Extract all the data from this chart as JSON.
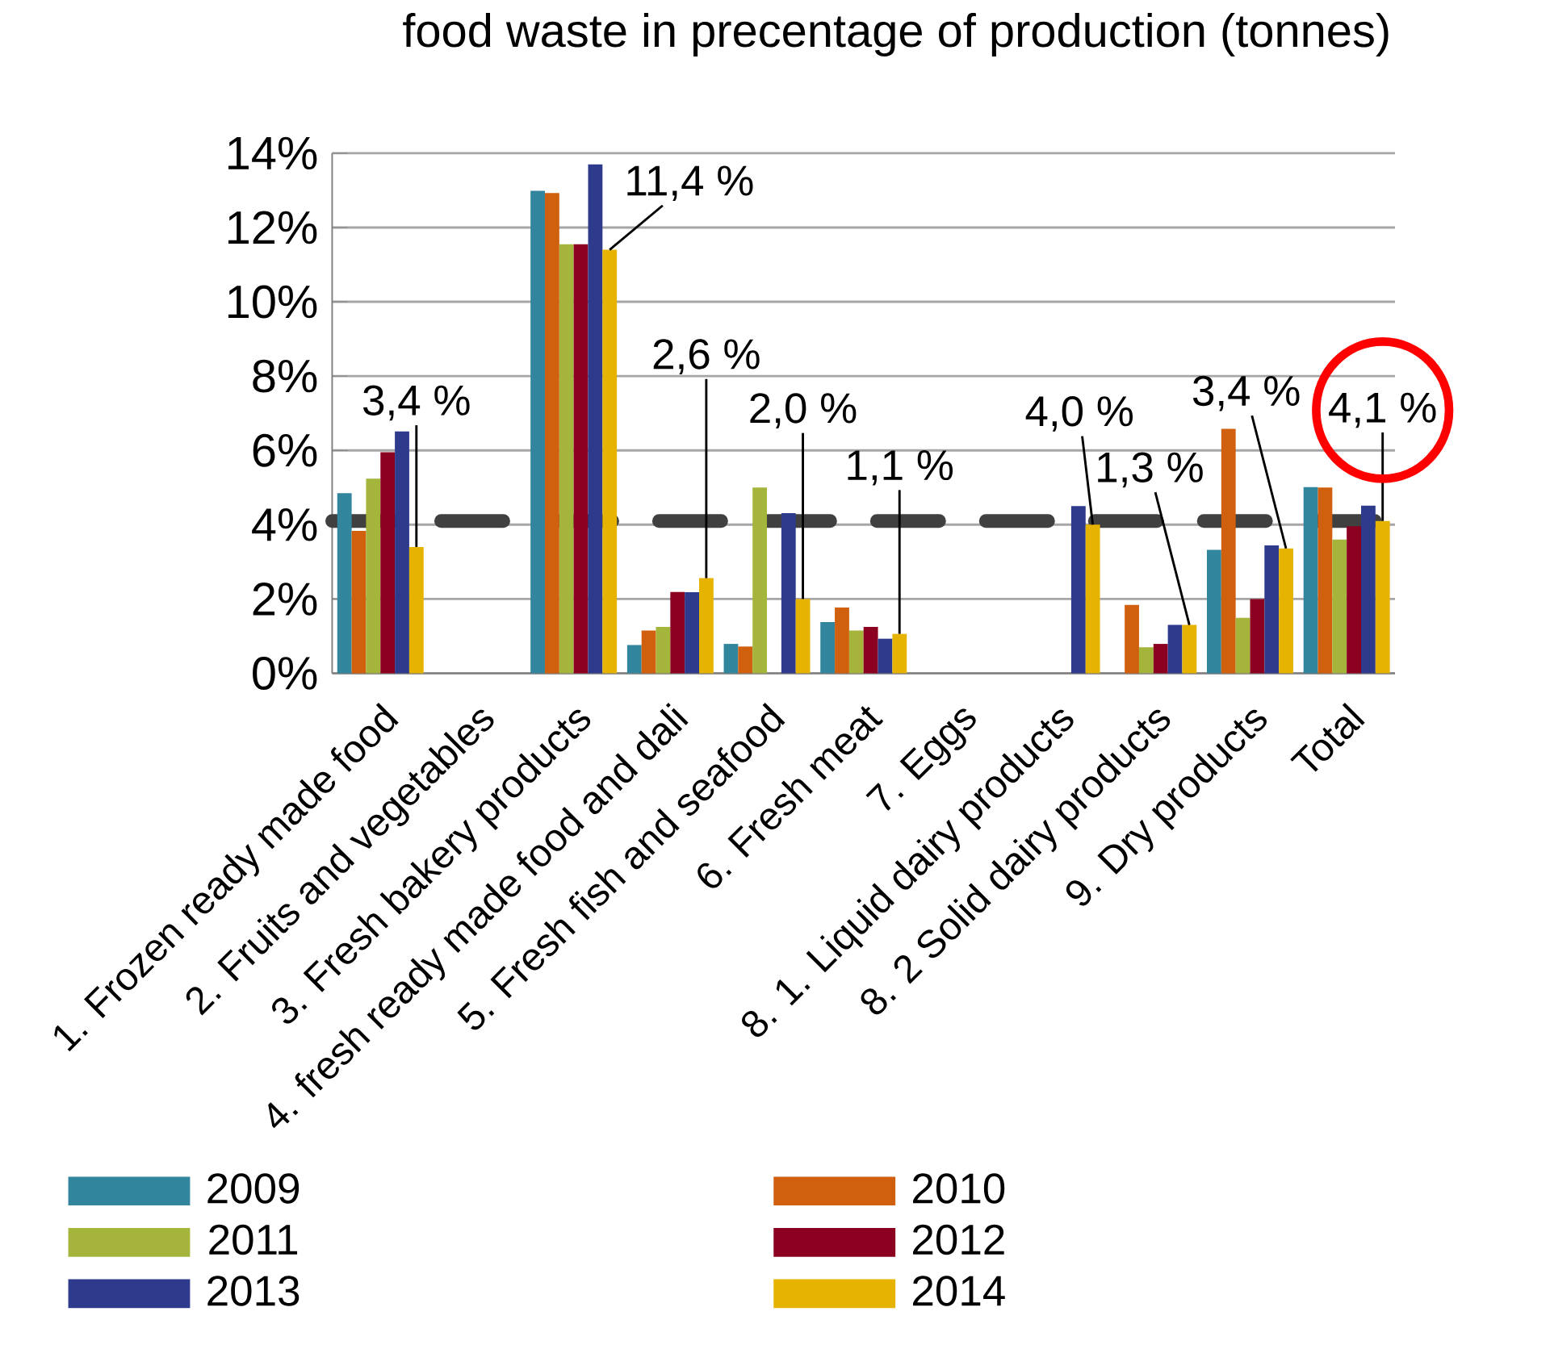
{
  "chart_data": {
    "type": "bar",
    "title": "food waste in precentage of production (tonnes)",
    "categories": [
      "1. Frozen ready made food",
      "2. Fruits and vegetables",
      "3. Fresh bakery products",
      "4. fresh ready made food and dali",
      "5. Fresh fish and seafood",
      "6. Fresh meat",
      "7. Eggs",
      "8. 1. Liquid dairy  products",
      "8. 2 Solid dairy  products",
      "9.  Dry products",
      "Total"
    ],
    "series": [
      {
        "name": "2009",
        "color": "#31859c",
        "values": [
          4.85,
          null,
          12.99,
          0.76,
          0.79,
          1.38,
          null,
          null,
          null,
          3.32,
          5.01
        ]
      },
      {
        "name": "2010",
        "color": "#d0600e",
        "values": [
          3.83,
          null,
          12.93,
          1.15,
          0.72,
          1.77,
          null,
          null,
          1.84,
          6.58,
          5.0
        ]
      },
      {
        "name": "2011",
        "color": "#a5b43a",
        "values": [
          5.24,
          null,
          11.55,
          1.25,
          5.0,
          1.15,
          null,
          null,
          0.7,
          1.49,
          3.6
        ]
      },
      {
        "name": "2012",
        "color": "#8b0020",
        "values": [
          5.95,
          null,
          11.55,
          2.19,
          null,
          1.25,
          null,
          null,
          0.79,
          2.0,
          3.96
        ]
      },
      {
        "name": "2013",
        "color": "#2e3a8c",
        "values": [
          6.51,
          null,
          13.7,
          2.18,
          4.31,
          0.93,
          null,
          4.5,
          1.3,
          3.44,
          4.51
        ]
      },
      {
        "name": "2014",
        "color": "#e6b400",
        "values": [
          3.4,
          null,
          11.4,
          2.56,
          2.0,
          1.06,
          null,
          4.0,
          1.3,
          3.36,
          4.1
        ],
        "value_labels": [
          "3,4 %",
          null,
          "11,4 %",
          "2,6 %",
          "2,0 %",
          "1,1 %",
          null,
          "4,0 %",
          "1,3 %",
          "3,4 %",
          "4,1 %"
        ]
      }
    ],
    "ylim": [
      0,
      14
    ],
    "yticks": [
      {
        "value": 0,
        "label": "0%"
      },
      {
        "value": 2,
        "label": "2%"
      },
      {
        "value": 4,
        "label": "4%"
      },
      {
        "value": 6,
        "label": "6%"
      },
      {
        "value": 8,
        "label": "8%"
      },
      {
        "value": 10,
        "label": "10%"
      },
      {
        "value": 12,
        "label": "12%"
      },
      {
        "value": 14,
        "label": "14%"
      }
    ],
    "grid": "y",
    "legend": "bottom",
    "ref_lines": [
      {
        "axis": "y",
        "value": 4.1,
        "color": "#404040",
        "line_style": "dashed"
      }
    ]
  }
}
